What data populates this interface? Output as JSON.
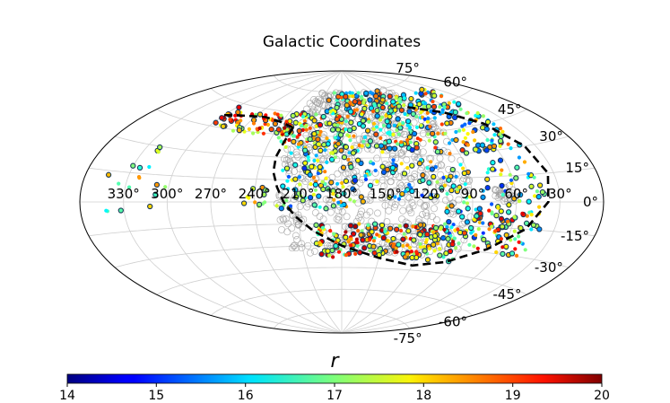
{
  "chart_data": {
    "type": "scatter",
    "projection": "aitoff",
    "title": "Galactic Coordinates",
    "longitude_tick_labels": [
      "330°",
      "300°",
      "270°",
      "240°",
      "210°",
      "180°",
      "150°",
      "120°",
      "90°",
      "60°",
      "30°"
    ],
    "latitude_tick_labels": [
      "75°",
      "60°",
      "45°",
      "30°",
      "15°",
      "0°",
      "-15°",
      "-30°",
      "-45°",
      "-60°",
      "-75°"
    ],
    "longitude_range_deg": [
      0,
      360
    ],
    "latitude_range_deg": [
      -90,
      90
    ],
    "grid": true,
    "colorbar": {
      "label": "r",
      "min": 14,
      "max": 20,
      "tick_labels": [
        "14",
        "15",
        "16",
        "17",
        "18",
        "19",
        "20"
      ],
      "colormap": "jet"
    },
    "series": [
      {
        "name": "footprint",
        "marker": "open-circle",
        "color": "#9a9a9a",
        "description_regions_deg": [
          {
            "l_range": [
              90,
              225
            ],
            "b_range": [
              -35,
              75
            ]
          },
          {
            "l_range": [
              60,
              75
            ],
            "b_range": [
              0,
              10
            ]
          }
        ]
      },
      {
        "name": "objects",
        "marker": "dot",
        "color_by": "r",
        "value_range": [
          14,
          20
        ]
      }
    ],
    "boundary": {
      "name": "dashed-boundary",
      "style": "dashed",
      "color": "#000000",
      "points_lb_deg": [
        [
          226,
          50
        ],
        [
          228,
          40
        ],
        [
          230,
          30
        ],
        [
          229,
          20
        ],
        [
          225,
          10
        ],
        [
          220,
          0
        ],
        [
          212,
          -10
        ],
        [
          200,
          -20
        ],
        [
          180,
          -30
        ],
        [
          150,
          -38
        ],
        [
          120,
          -42
        ],
        [
          95,
          -38
        ],
        [
          70,
          -28
        ],
        [
          50,
          -15
        ],
        [
          38,
          0
        ],
        [
          34,
          15
        ],
        [
          38,
          30
        ],
        [
          50,
          45
        ],
        [
          70,
          55
        ],
        [
          100,
          62
        ]
      ]
    }
  }
}
